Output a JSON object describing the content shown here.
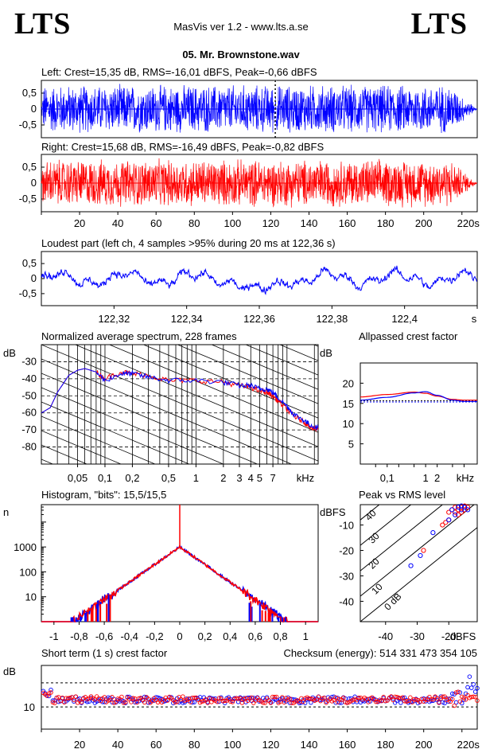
{
  "header": {
    "logo_left": "LTS",
    "logo_right": "LTS",
    "app_title": "MasVis ver 1.2 - www.lts.a.se",
    "file_name": "05. Mr. Brownstone.wav"
  },
  "colors": {
    "left": "#0000ff",
    "right": "#ff0000"
  },
  "chart_data": [
    {
      "type": "area",
      "id": "left",
      "title": "Left: Crest=15,35 dB, RMS=-16,01 dBFS, Peak=-0,66 dBFS",
      "ylim": [
        -0.9,
        0.9
      ],
      "yticks": [
        "0,5",
        "0",
        "-0,5"
      ],
      "xlim": [
        0,
        228
      ],
      "marker_x": 122.36,
      "envelope_amplitude": 0.82,
      "series": [
        {
          "color": "blue"
        }
      ]
    },
    {
      "type": "area",
      "id": "right",
      "title": "Right: Crest=15,68 dB, RMS=-16,49 dBFS, Peak=-0,82 dBFS",
      "ylim": [
        -0.9,
        0.9
      ],
      "yticks": [
        "0,5",
        "0",
        "-0,5"
      ],
      "xlim": [
        0,
        228
      ],
      "xticks": [
        "20",
        "40",
        "60",
        "80",
        "100",
        "120",
        "140",
        "160",
        "180",
        "200",
        "220s"
      ],
      "envelope_amplitude": 0.8,
      "series": [
        {
          "color": "red"
        }
      ]
    },
    {
      "type": "line",
      "id": "loudest",
      "title": "Loudest part (left  ch, 4 samples >95% during 20 ms at 122,36 s)",
      "ylim": [
        -0.9,
        0.9
      ],
      "yticks": [
        "0,5",
        "0",
        "-0,5"
      ],
      "xlim": [
        122.3,
        122.42
      ],
      "xticks": [
        "122,32",
        "122,34",
        "122,36",
        "122,38",
        "122,4",
        "s"
      ]
    },
    {
      "type": "line",
      "id": "spectrum",
      "title": "Normalized average spectrum, 228 frames",
      "ylabel": "dB",
      "yticks": [
        "-30",
        "-40",
        "-50",
        "-60",
        "-70",
        "-80"
      ],
      "xticks": [
        "0,05",
        "0,1",
        "0,2",
        "0,5",
        "1",
        "2",
        "3",
        "4",
        "5",
        "7",
        "kHz"
      ],
      "ylim": [
        -90,
        -20
      ],
      "xlim_khz": [
        0.02,
        22
      ],
      "series": [
        {
          "color": "red",
          "x_khz": [
            0.02,
            0.025,
            0.03,
            0.04,
            0.05,
            0.06,
            0.08,
            0.1,
            0.15,
            0.2,
            0.3,
            0.5,
            1,
            2,
            3,
            4,
            5,
            6,
            7,
            8,
            10,
            12,
            15,
            18,
            22
          ],
          "y": [
            -60,
            -57,
            -48,
            -38,
            -35,
            -34,
            -36,
            -40,
            -36,
            -37,
            -38,
            -41,
            -41,
            -42,
            -44,
            -45,
            -47,
            -48,
            -50,
            -53,
            -58,
            -62,
            -65,
            -68,
            -70
          ]
        },
        {
          "color": "blue",
          "x_khz": [
            0.02,
            0.025,
            0.03,
            0.04,
            0.05,
            0.06,
            0.08,
            0.1,
            0.15,
            0.2,
            0.3,
            0.5,
            1,
            2,
            3,
            4,
            5,
            6,
            7,
            8,
            10,
            12,
            15,
            18,
            22
          ],
          "y": [
            -60,
            -57,
            -48,
            -38,
            -35,
            -34,
            -36,
            -41,
            -37,
            -37,
            -39,
            -41,
            -41,
            -42,
            -44,
            -44,
            -46,
            -46,
            -48,
            -51,
            -56,
            -61,
            -64,
            -67,
            -69
          ]
        }
      ]
    },
    {
      "type": "line",
      "id": "allpass",
      "title": "Allpassed crest factor",
      "ylabel": "dB",
      "yticks": [
        "20",
        "15",
        "10",
        "5"
      ],
      "xticks": [
        "0,1",
        "1",
        "2",
        "kHz"
      ],
      "ylim": [
        0,
        25
      ],
      "xlim_khz": [
        0.02,
        22
      ],
      "series": [
        {
          "color": "red",
          "x_khz": [
            0.02,
            0.1,
            0.5,
            1,
            2,
            5,
            10,
            22
          ],
          "y": [
            16.6,
            17.2,
            17.8,
            17.5,
            16.8,
            16.0,
            15.8,
            15.8
          ]
        },
        {
          "color": "blue",
          "x_khz": [
            0.02,
            0.1,
            0.5,
            1,
            2,
            5,
            10,
            22
          ],
          "y": [
            15.8,
            16.5,
            17.6,
            17.9,
            17.0,
            15.8,
            15.5,
            15.5
          ]
        }
      ]
    },
    {
      "type": "line",
      "id": "histogram",
      "title": "Histogram, \"bits\": 15,5/15,5",
      "ylabel": "n",
      "log_scale": true,
      "yticks": [
        "1000",
        "100",
        "10"
      ],
      "xticks": [
        "-1",
        "-0,8",
        "-0,6",
        "-0,4",
        "-0,2",
        "0",
        "0,2",
        "0,4",
        "0,6",
        "0,8",
        "1"
      ],
      "xlim": [
        -1.1,
        1.1
      ],
      "ylim": [
        1,
        50000
      ],
      "peak_at_zero": 1000,
      "edge": 0.85
    },
    {
      "type": "scatter",
      "id": "peakrms",
      "title": "Peak vs RMS level",
      "ylabel": "dBFS",
      "xlabel": "dBFS",
      "yticks": [
        "-10",
        "-20",
        "-30",
        "-40"
      ],
      "xticks": [
        "-40",
        "-30",
        "-20"
      ],
      "xlim": [
        -48,
        -11
      ],
      "ylim": [
        -48,
        -2
      ],
      "diag_labels": [
        "40",
        "30",
        "20",
        "10",
        "0 dB"
      ],
      "series": [
        {
          "color": "red",
          "points": [
            [
              -20,
              -5
            ],
            [
              -19,
              -4
            ],
            [
              -18,
              -3
            ],
            [
              -17,
              -4
            ],
            [
              -16,
              -3
            ],
            [
              -15,
              -4
            ],
            [
              -14,
              -3
            ],
            [
              -16,
              -5
            ],
            [
              -18,
              -5
            ],
            [
              -22,
              -10
            ],
            [
              -21,
              -9
            ],
            [
              -20,
              -8
            ],
            [
              -28,
              -20
            ],
            [
              -17,
              -6
            ],
            [
              -15,
              -2.5
            ]
          ]
        },
        {
          "color": "blue",
          "points": [
            [
              -19,
              -4
            ],
            [
              -17,
              -3
            ],
            [
              -16,
              -4
            ],
            [
              -15,
              -3
            ],
            [
              -14,
              -4
            ],
            [
              -18,
              -6
            ],
            [
              -25,
              -13
            ],
            [
              -29,
              -22
            ],
            [
              -32,
              -26
            ],
            [
              -20,
              -8
            ],
            [
              -16,
              -2.5
            ]
          ]
        }
      ]
    },
    {
      "type": "scatter",
      "id": "shortcrest",
      "title": "Short term (1 s) crest factor",
      "checksum": "Checksum (energy):   514 331 473 354 105",
      "ylabel": "dB",
      "yticks": [
        "10"
      ],
      "xticks": [
        "20",
        "40",
        "60",
        "80",
        "100",
        "120",
        "140",
        "160",
        "180",
        "200",
        "220s"
      ],
      "xlim": [
        0,
        228
      ],
      "ylim": [
        2,
        25
      ],
      "dotted_lines": [
        10,
        18.7
      ],
      "mean_level": 12.6
    }
  ]
}
